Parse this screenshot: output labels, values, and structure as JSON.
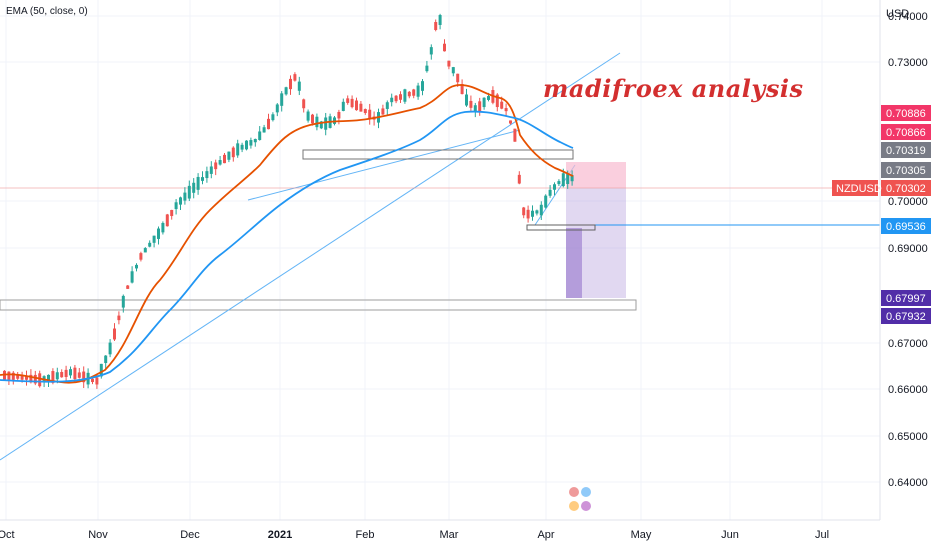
{
  "indicator": {
    "label": "EMA (50, close, 0)"
  },
  "currency": "USD",
  "annotation": {
    "text": "madifroex analysis"
  },
  "symbol": "NZDUSD",
  "price_axis": {
    "ticks": [
      "0.74000",
      "0.73000",
      "0.70000",
      "0.69000",
      "0.67000",
      "0.66000",
      "0.65000",
      "0.64000"
    ]
  },
  "time_axis": {
    "labels": [
      "Oct",
      "Nov",
      "Dec",
      "2021",
      "Feb",
      "Mar",
      "Apr",
      "May",
      "Jun",
      "Jul"
    ]
  },
  "badges": [
    {
      "text": "0.70886",
      "color": "#f23668"
    },
    {
      "text": "0.70866",
      "color": "#f23668"
    },
    {
      "text": "0.70319",
      "color": "#787b86"
    },
    {
      "text": "0.70305",
      "color": "#787b86"
    },
    {
      "text": "0.70302",
      "color": "#ef5350"
    },
    {
      "text": "0.69536",
      "color": "#2196f3"
    },
    {
      "text": "0.67997",
      "color": "#512da8"
    },
    {
      "text": "0.67932",
      "color": "#512da8"
    }
  ],
  "colors": {
    "up": "#26a69a",
    "down": "#ef5350",
    "ema_fast": "#e65100",
    "ema_slow": "#2196f3",
    "trendline": "#64b5f6"
  },
  "chart_data": {
    "type": "candlestick",
    "symbol": "NZDUSD",
    "y_range": [
      0.6335,
      0.7438
    ],
    "last_price": 0.70302,
    "levels": [
      0.70886,
      0.70866,
      0.70319,
      0.70305,
      0.69536,
      0.67997,
      0.67932
    ]
  }
}
